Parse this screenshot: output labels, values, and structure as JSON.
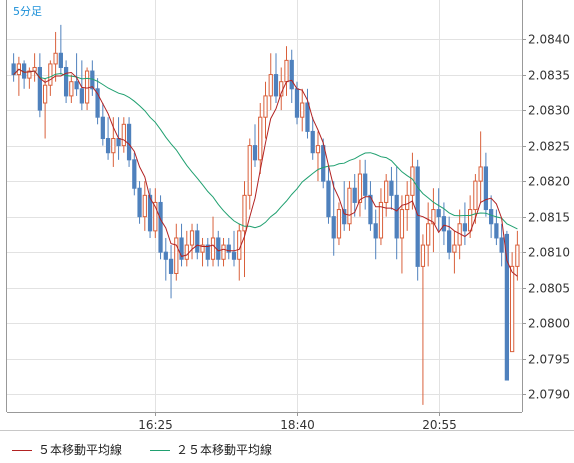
{
  "chart_data": {
    "type": "candlestick",
    "timeframe_label": "5分足",
    "x_tick_labels": [
      "16:25",
      "18:40",
      "20:55"
    ],
    "y_ticks": [
      2.079,
      2.0795,
      2.08,
      2.0805,
      2.081,
      2.0815,
      2.082,
      2.0825,
      2.083,
      2.0835,
      2.084
    ],
    "ylim": [
      2.07875,
      2.08455
    ],
    "grid": true,
    "colors": {
      "up": "#d9603b",
      "down": "#4f81bd",
      "ma5": "#b22222",
      "ma25": "#20a070",
      "grid": "#e2e2e2",
      "axis": "#999999",
      "label": "#333333",
      "timeframe": "#1a8fd8"
    },
    "series": [
      {
        "name": "５本移動平均線",
        "color": "#b22222"
      },
      {
        "name": "２５本移動平均線",
        "color": "#20a070"
      }
    ],
    "ohlc": [
      [
        2.08365,
        2.0838,
        2.0834,
        2.0835
      ],
      [
        2.0835,
        2.08375,
        2.0832,
        2.08365
      ],
      [
        2.08365,
        2.0837,
        2.0833,
        2.08345
      ],
      [
        2.08345,
        2.0836,
        2.0833,
        2.08355
      ],
      [
        2.08355,
        2.0838,
        2.0834,
        2.0836
      ],
      [
        2.0836,
        2.0838,
        2.0829,
        2.083
      ],
      [
        2.0831,
        2.08345,
        2.0826,
        2.08335
      ],
      [
        2.08335,
        2.0837,
        2.0832,
        2.08365
      ],
      [
        2.08365,
        2.0841,
        2.0834,
        2.0838
      ],
      [
        2.0838,
        2.0842,
        2.0835,
        2.0836
      ],
      [
        2.0836,
        2.0837,
        2.0831,
        2.0832
      ],
      [
        2.0832,
        2.0835,
        2.0831,
        2.0834
      ],
      [
        2.0834,
        2.0838,
        2.0832,
        2.0833
      ],
      [
        2.0833,
        2.0837,
        2.083,
        2.0831
      ],
      [
        2.0831,
        2.0836,
        2.083,
        2.08355
      ],
      [
        2.08355,
        2.0837,
        2.0832,
        2.0833
      ],
      [
        2.0833,
        2.08345,
        2.0828,
        2.0829
      ],
      [
        2.0829,
        2.0831,
        2.0825,
        2.0826
      ],
      [
        2.0826,
        2.0829,
        2.0823,
        2.0824
      ],
      [
        2.0824,
        2.0829,
        2.0822,
        2.0826
      ],
      [
        2.0826,
        2.0829,
        2.0823,
        2.0825
      ],
      [
        2.0825,
        2.0829,
        2.0824,
        2.0828
      ],
      [
        2.0828,
        2.0829,
        2.0822,
        2.0823
      ],
      [
        2.0823,
        2.0824,
        2.0818,
        2.0819
      ],
      [
        2.0819,
        2.082,
        2.0814,
        2.0815
      ],
      [
        2.0815,
        2.082,
        2.0813,
        2.0818
      ],
      [
        2.0818,
        2.0819,
        2.0812,
        2.0813
      ],
      [
        2.0813,
        2.0819,
        2.0812,
        2.0817
      ],
      [
        2.0817,
        2.0818,
        2.0809,
        2.081
      ],
      [
        2.081,
        2.0812,
        2.0806,
        2.0809
      ],
      [
        2.0809,
        2.0811,
        2.08035,
        2.0807
      ],
      [
        2.0807,
        2.0814,
        2.0806,
        2.0812
      ],
      [
        2.0812,
        2.0814,
        2.0808,
        2.0809
      ],
      [
        2.0809,
        2.0813,
        2.0808,
        2.0811
      ],
      [
        2.0811,
        2.0814,
        2.0809,
        2.0813
      ],
      [
        2.0813,
        2.0814,
        2.0809,
        2.081
      ],
      [
        2.081,
        2.0812,
        2.0808,
        2.0811
      ],
      [
        2.0811,
        2.0812,
        2.0808,
        2.0809
      ],
      [
        2.0809,
        2.0815,
        2.0808,
        2.0812
      ],
      [
        2.0812,
        2.0813,
        2.0808,
        2.0809
      ],
      [
        2.0809,
        2.0812,
        2.0808,
        2.0811
      ],
      [
        2.0811,
        2.0812,
        2.0809,
        2.081
      ],
      [
        2.081,
        2.0813,
        2.0808,
        2.0809
      ],
      [
        2.0809,
        2.0814,
        2.0806,
        2.0813
      ],
      [
        2.0813,
        2.082,
        2.08065,
        2.0818
      ],
      [
        2.0818,
        2.0826,
        2.0816,
        2.0825
      ],
      [
        2.0825,
        2.0828,
        2.0822,
        2.0823
      ],
      [
        2.0823,
        2.0831,
        2.0821,
        2.0829
      ],
      [
        2.0829,
        2.0834,
        2.0826,
        2.0832
      ],
      [
        2.0832,
        2.0838,
        2.083,
        2.0835
      ],
      [
        2.0835,
        2.0838,
        2.0831,
        2.0832
      ],
      [
        2.0832,
        2.0836,
        2.083,
        2.0834
      ],
      [
        2.0834,
        2.0839,
        2.0832,
        2.0837
      ],
      [
        2.0837,
        2.08385,
        2.0831,
        2.0833
      ],
      [
        2.0833,
        2.0834,
        2.0828,
        2.0829
      ],
      [
        2.0829,
        2.0833,
        2.0827,
        2.0831
      ],
      [
        2.0831,
        2.0833,
        2.0826,
        2.0827
      ],
      [
        2.0827,
        2.0829,
        2.0823,
        2.0824
      ],
      [
        2.0824,
        2.0827,
        2.082,
        2.0825
      ],
      [
        2.0825,
        2.0826,
        2.0819,
        2.082
      ],
      [
        2.082,
        2.0822,
        2.0814,
        2.0815
      ],
      [
        2.0815,
        2.082,
        2.08095,
        2.0812
      ],
      [
        2.0812,
        2.0817,
        2.0811,
        2.0816
      ],
      [
        2.0816,
        2.082,
        2.0813,
        2.0814
      ],
      [
        2.0814,
        2.082,
        2.0813,
        2.0819
      ],
      [
        2.0819,
        2.0821,
        2.0815,
        2.0817
      ],
      [
        2.0817,
        2.0823,
        2.0815,
        2.0821
      ],
      [
        2.0821,
        2.0823,
        2.0816,
        2.0818
      ],
      [
        2.0818,
        2.082,
        2.0813,
        2.0814
      ],
      [
        2.0814,
        2.0816,
        2.0809,
        2.0812
      ],
      [
        2.0812,
        2.0819,
        2.0811,
        2.0817
      ],
      [
        2.0817,
        2.0821,
        2.0815,
        2.082
      ],
      [
        2.082,
        2.0822,
        2.0816,
        2.0818
      ],
      [
        2.0818,
        2.0822,
        2.0809,
        2.0812
      ],
      [
        2.0812,
        2.0818,
        2.0807,
        2.0816
      ],
      [
        2.0816,
        2.082,
        2.0813,
        2.0818
      ],
      [
        2.0818,
        2.0824,
        2.0816,
        2.0822
      ],
      [
        2.0822,
        2.0823,
        2.0806,
        2.0808
      ],
      [
        2.0808,
        2.08125,
        2.07885,
        2.0811
      ],
      [
        2.0811,
        2.0817,
        2.0808,
        2.0814
      ],
      [
        2.0814,
        2.0819,
        2.081,
        2.0816
      ],
      [
        2.0816,
        2.0819,
        2.0813,
        2.0815
      ],
      [
        2.0815,
        2.0817,
        2.0811,
        2.0813
      ],
      [
        2.0813,
        2.0815,
        2.0809,
        2.081
      ],
      [
        2.081,
        2.0813,
        2.0807,
        2.0811
      ],
      [
        2.0811,
        2.0816,
        2.0809,
        2.0814
      ],
      [
        2.0814,
        2.0817,
        2.0811,
        2.0813
      ],
      [
        2.0813,
        2.0818,
        2.0812,
        2.0816
      ],
      [
        2.0816,
        2.0821,
        2.0814,
        2.082
      ],
      [
        2.082,
        2.0827,
        2.0817,
        2.0822
      ],
      [
        2.0822,
        2.0824,
        2.0815,
        2.0816
      ],
      [
        2.0816,
        2.0818,
        2.0812,
        2.0814
      ],
      [
        2.0814,
        2.0816,
        2.0811,
        2.0812
      ],
      [
        2.0812,
        2.0814,
        2.0808,
        2.081
      ],
      [
        2.08125,
        2.0813,
        2.0792,
        2.0792
      ],
      [
        2.0796,
        2.081,
        2.0796,
        2.0808
      ],
      [
        2.0808,
        2.0813,
        2.0806,
        2.0811
      ]
    ]
  }
}
